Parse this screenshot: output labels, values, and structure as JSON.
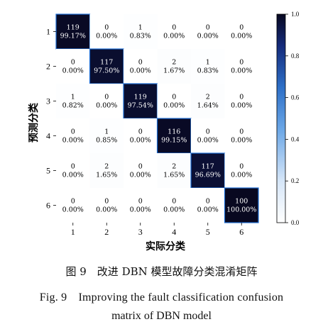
{
  "chart_data": {
    "type": "heatmap",
    "xlabel": "实际分类",
    "ylabel": "预测分类",
    "x_categories": [
      "1",
      "2",
      "3",
      "4",
      "5",
      "6"
    ],
    "y_categories": [
      "1",
      "2",
      "3",
      "4",
      "5",
      "6"
    ],
    "counts": [
      [
        119,
        0,
        1,
        0,
        0,
        0
      ],
      [
        0,
        117,
        0,
        2,
        1,
        0
      ],
      [
        1,
        0,
        119,
        0,
        2,
        0
      ],
      [
        0,
        1,
        0,
        116,
        0,
        0
      ],
      [
        0,
        2,
        0,
        2,
        117,
        0
      ],
      [
        0,
        0,
        0,
        0,
        0,
        100
      ]
    ],
    "percents": [
      [
        "99.17%",
        "0.00%",
        "0.83%",
        "0.00%",
        "0.00%",
        "0.00%"
      ],
      [
        "0.00%",
        "97.50%",
        "0.00%",
        "1.67%",
        "0.83%",
        "0.00%"
      ],
      [
        "0.82%",
        "0.00%",
        "97.54%",
        "0.00%",
        "1.64%",
        "0.00%"
      ],
      [
        "0.00%",
        "0.85%",
        "0.00%",
        "99.15%",
        "0.00%",
        "0.00%"
      ],
      [
        "0.00%",
        "1.65%",
        "0.00%",
        "1.65%",
        "96.69%",
        "0.00%"
      ],
      [
        "0.00%",
        "0.00%",
        "0.00%",
        "0.00%",
        "0.00%",
        "100.00%"
      ]
    ],
    "colorbar": {
      "range": [
        0.0,
        1.0
      ],
      "ticks": [
        "0.0",
        "0.2",
        "0.4",
        "0.6",
        "0.8",
        "1.0"
      ],
      "colormap": "white-to-dark-navy"
    },
    "colors": {
      "high": "#080820",
      "low": "#ffffff",
      "mid": "#2d73c8"
    }
  },
  "caption": {
    "cn": "图 9　改进 DBN 模型故障分类混淆矩阵",
    "en_line1": "Fig. 9　Improving the fault classification confusion",
    "en_line2": "matrix of DBN model"
  }
}
